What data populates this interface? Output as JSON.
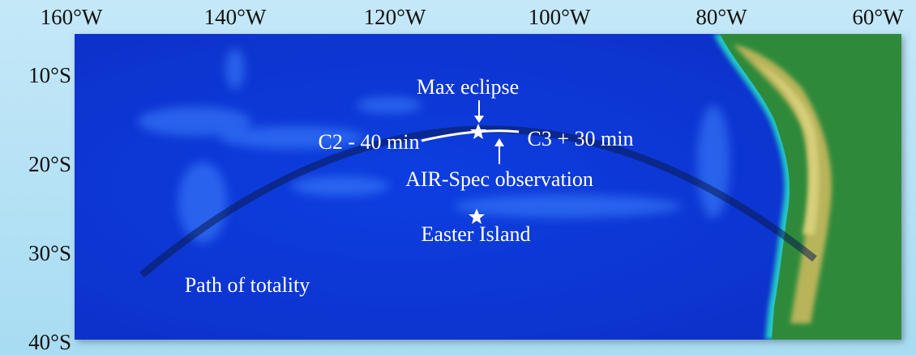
{
  "map": {
    "lon_labels": [
      "160°W",
      "140°W",
      "120°W",
      "100°W",
      "80°W",
      "60°W"
    ],
    "lat_labels": [
      "10°S",
      "20°S",
      "30°S",
      "40°S"
    ],
    "annotations": {
      "max_eclipse": "Max eclipse",
      "c2": "C2 - 40 min",
      "c3": "C3 + 30 min",
      "observation": "AIR-Spec observation",
      "easter_island": "Easter Island",
      "path": "Path of totality"
    }
  }
}
